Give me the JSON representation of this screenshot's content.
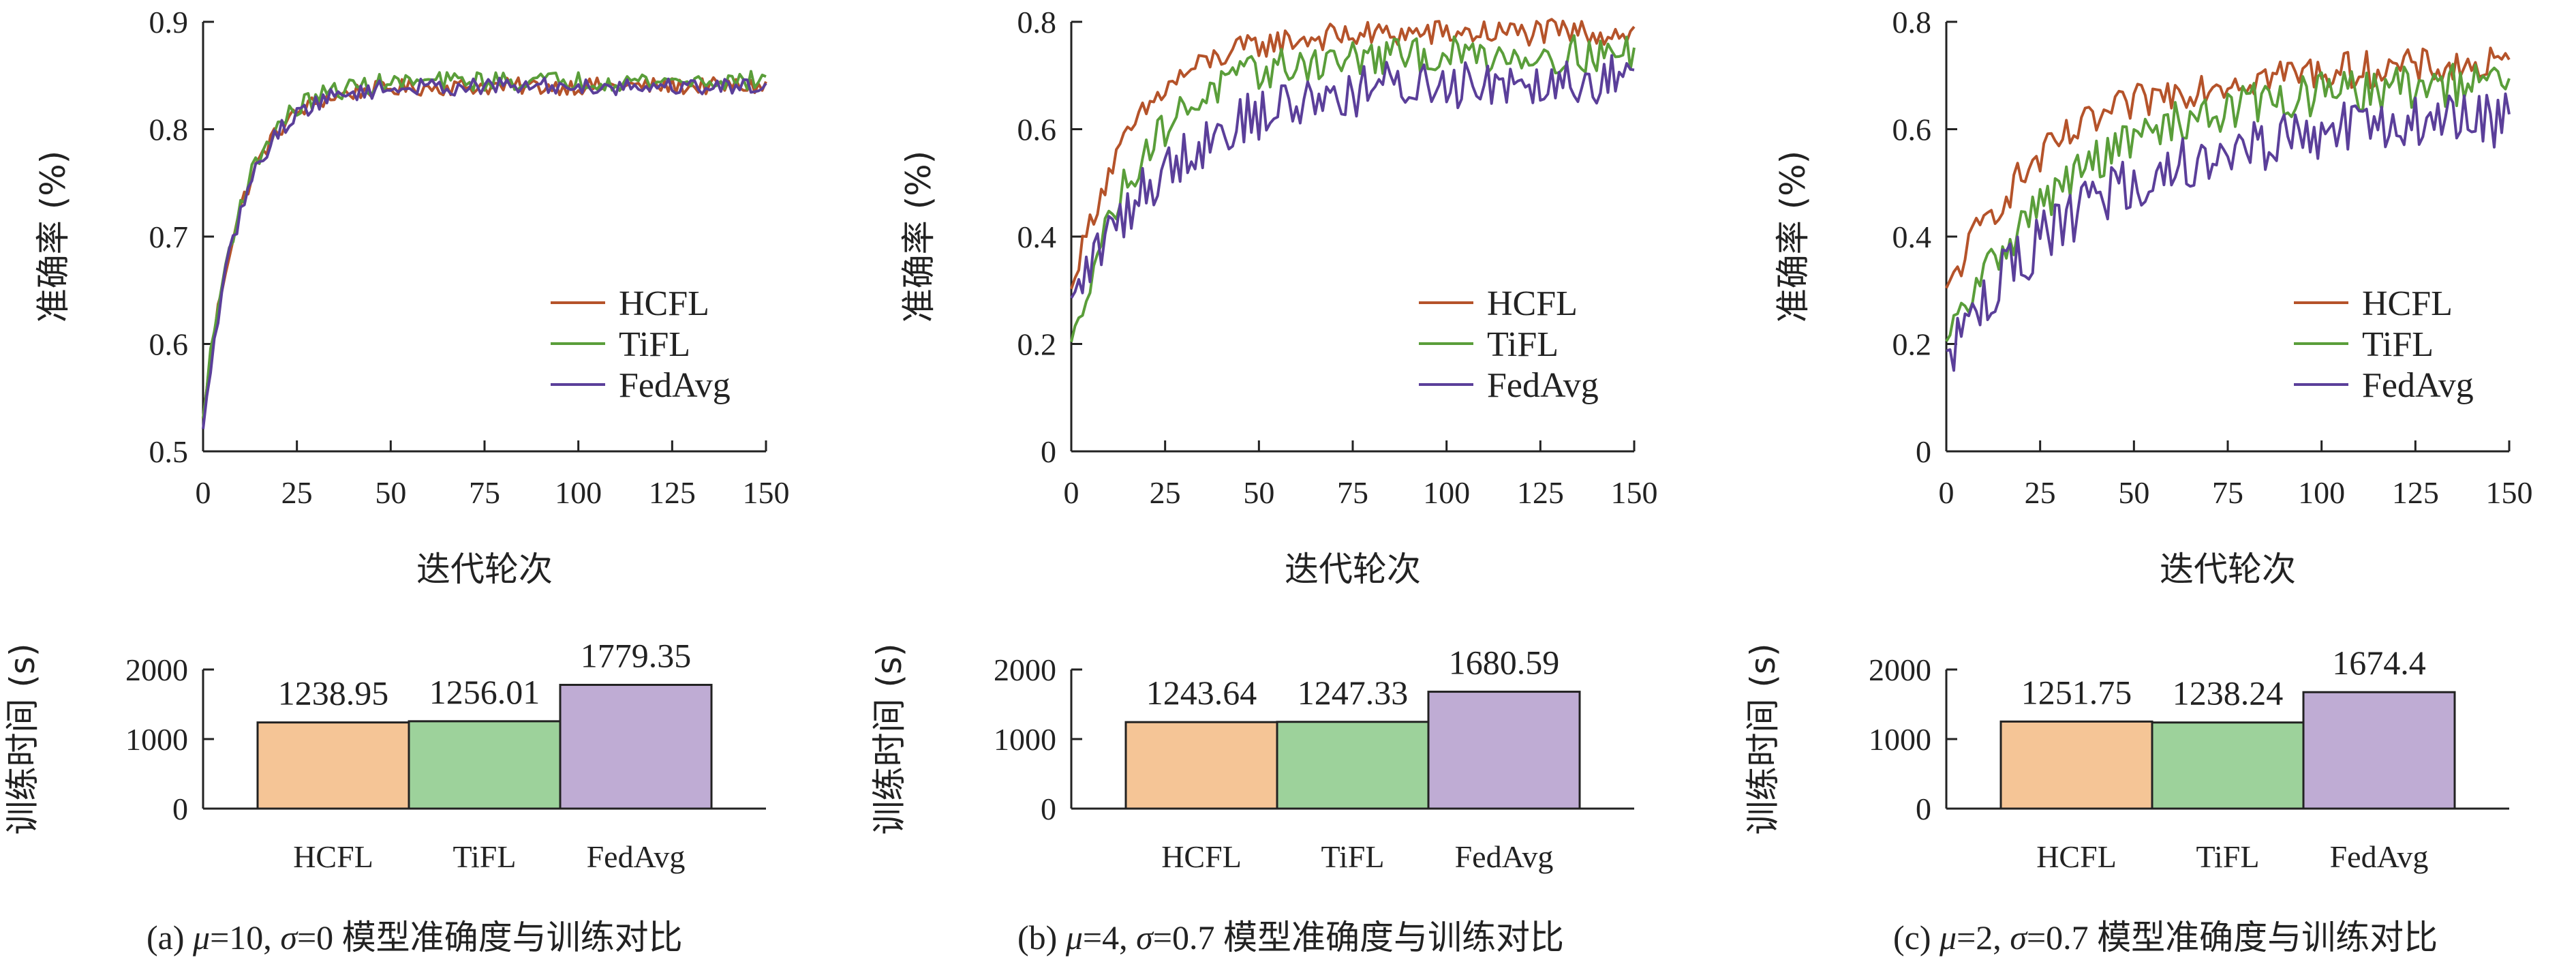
{
  "chart_data": [
    {
      "type": "line",
      "panel": "a",
      "caption": {
        "prefix": "(a) ",
        "mu_sym": "μ",
        "mu_val": "=10, ",
        "sigma_sym": "σ",
        "sigma_val": "=0 ",
        "text": "模型准确度与训练对比"
      },
      "xlabel": "迭代轮次",
      "ylabel": "准确率 (%)",
      "xlim": [
        0,
        150
      ],
      "ylim": [
        0.5,
        0.9
      ],
      "xticks": [
        0,
        25,
        50,
        75,
        100,
        125,
        150
      ],
      "yticks": [
        0.5,
        0.6,
        0.7,
        0.8,
        0.9
      ],
      "ytick_labels": [
        "0.5",
        "0.6",
        "0.7",
        "0.8",
        "0.9"
      ],
      "legend_position": "lower-right",
      "series": [
        {
          "name": "HCFL",
          "color": "#b5532a",
          "start": 0.53,
          "plateau": 0.84,
          "rate": 0.1,
          "noise": 0.008
        },
        {
          "name": "TiFL",
          "color": "#5a9e3a",
          "start": 0.53,
          "plateau": 0.845,
          "rate": 0.1,
          "noise": 0.009
        },
        {
          "name": "FedAvg",
          "color": "#5b3f9a",
          "start": 0.52,
          "plateau": 0.84,
          "rate": 0.1,
          "noise": 0.008
        }
      ],
      "bars": {
        "ylabel": "训练时间 (s)",
        "ylim": [
          0,
          2000
        ],
        "yticks": [
          0,
          1000,
          2000
        ],
        "ytick_labels": [
          "0",
          "1000",
          "2000"
        ],
        "categories": [
          "HCFL",
          "TiFL",
          "FedAvg"
        ],
        "values": [
          1238.95,
          1256.01,
          1779.35
        ],
        "value_labels": [
          "1238.95",
          "1256.01",
          "1779.35"
        ],
        "colors": [
          "#f5c596",
          "#9dd29b",
          "#bfacd4"
        ]
      }
    },
    {
      "type": "line",
      "panel": "b",
      "caption": {
        "prefix": "(b) ",
        "mu_sym": "μ",
        "mu_val": "=4, ",
        "sigma_sym": "σ",
        "sigma_val": "=0.7 ",
        "text": "模型准确度与训练对比"
      },
      "xlabel": "迭代轮次",
      "ylabel": "准确率 (%)",
      "xlim": [
        0,
        150
      ],
      "ylim": [
        0,
        0.8
      ],
      "xticks": [
        0,
        25,
        50,
        75,
        100,
        125,
        150
      ],
      "yticks": [
        0,
        0.2,
        0.4,
        0.6,
        0.8
      ],
      "ytick_labels": [
        "0",
        "0.2",
        "0.4",
        "0.6",
        "0.8"
      ],
      "legend_position": "lower-right",
      "series": [
        {
          "name": "HCFL",
          "color": "#b5532a",
          "start": 0.3,
          "plateau": 0.78,
          "rate": 0.06,
          "noise": 0.025
        },
        {
          "name": "TiFL",
          "color": "#5a9e3a",
          "start": 0.2,
          "plateau": 0.74,
          "rate": 0.055,
          "noise": 0.035
        },
        {
          "name": "FedAvg",
          "color": "#5b3f9a",
          "start": 0.28,
          "plateau": 0.7,
          "rate": 0.035,
          "noise": 0.05
        }
      ],
      "bars": {
        "ylabel": "训练时间 (s)",
        "ylim": [
          0,
          2000
        ],
        "yticks": [
          0,
          1000,
          2000
        ],
        "ytick_labels": [
          "0",
          "1000",
          "2000"
        ],
        "categories": [
          "HCFL",
          "TiFL",
          "FedAvg"
        ],
        "values": [
          1243.64,
          1247.33,
          1680.59
        ],
        "value_labels": [
          "1243.64",
          "1247.33",
          "1680.59"
        ],
        "colors": [
          "#f5c596",
          "#9dd29b",
          "#bfacd4"
        ]
      }
    },
    {
      "type": "line",
      "panel": "c",
      "caption": {
        "prefix": "(c) ",
        "mu_sym": "μ",
        "mu_val": "=2, ",
        "sigma_sym": "σ",
        "sigma_val": "=0.7 ",
        "text": "模型准确度与训练对比"
      },
      "xlabel": "迭代轮次",
      "ylabel": "准确率 (%)",
      "xlim": [
        0,
        150
      ],
      "ylim": [
        0,
        0.8
      ],
      "xticks": [
        0,
        25,
        50,
        75,
        100,
        125,
        150
      ],
      "yticks": [
        0,
        0.2,
        0.4,
        0.6,
        0.8
      ],
      "ytick_labels": [
        "0",
        "0.2",
        "0.4",
        "0.6",
        "0.8"
      ],
      "legend_position": "lower-right",
      "series": [
        {
          "name": "HCFL",
          "color": "#b5532a",
          "start": 0.3,
          "plateau": 0.72,
          "rate": 0.035,
          "noise": 0.035
        },
        {
          "name": "TiFL",
          "color": "#5a9e3a",
          "start": 0.2,
          "plateau": 0.69,
          "rate": 0.03,
          "noise": 0.04
        },
        {
          "name": "FedAvg",
          "color": "#5b3f9a",
          "start": 0.18,
          "plateau": 0.63,
          "rate": 0.025,
          "noise": 0.055
        }
      ],
      "bars": {
        "ylabel": "训练时间 (s)",
        "ylim": [
          0,
          2000
        ],
        "yticks": [
          0,
          1000,
          2000
        ],
        "ytick_labels": [
          "0",
          "1000",
          "2000"
        ],
        "categories": [
          "HCFL",
          "TiFL",
          "FedAvg"
        ],
        "values": [
          1251.75,
          1238.24,
          1674.4
        ],
        "value_labels": [
          "1251.75",
          "1238.24",
          "1674.4"
        ],
        "colors": [
          "#f5c596",
          "#9dd29b",
          "#bfacd4"
        ]
      }
    }
  ]
}
